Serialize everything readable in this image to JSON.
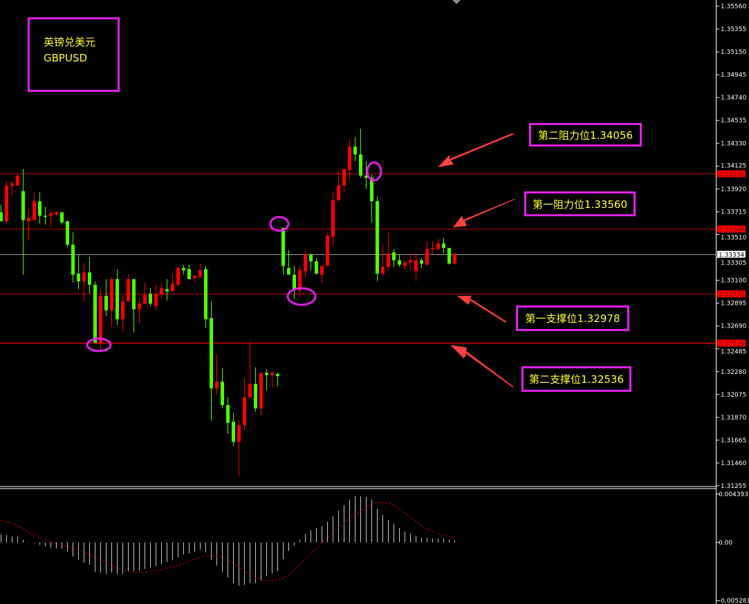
{
  "title_box": {
    "name_cn": "英镑兑美元",
    "symbol": "GBPUSD"
  },
  "annotations": [
    {
      "label": "第二阻力位1.34056",
      "price": 1.34056
    },
    {
      "label": "第一阻力位1.33560",
      "price": 1.3356
    },
    {
      "label": "第一支撑位1.32978",
      "price": 1.32978
    },
    {
      "label": "第二支撑位1.32536",
      "price": 1.32536
    }
  ],
  "colors": {
    "background": "#000000",
    "bull": "#ff0000",
    "bear": "#4cff00",
    "level_line": "#ff0000",
    "label_text": "#ffff33",
    "label_border": "#e020e8",
    "macd_hist": "#c8c8c8",
    "macd_signal": "#ff0000",
    "current_price_line": "#9a9a9a"
  },
  "chart_data": [
    {
      "type": "candlestick",
      "symbol": "GBPUSD",
      "ylim": [
        1.31255,
        1.3556
      ],
      "y_ticks": [
        "1.35560",
        "1.35355",
        "1.35150",
        "1.34945",
        "1.34740",
        "1.34535",
        "1.34330",
        "1.34125",
        "1.33920",
        "1.33715",
        "1.33510",
        "1.33305",
        "1.33100",
        "1.32895",
        "1.32690",
        "1.32485",
        "1.32280",
        "1.32075",
        "1.31870",
        "1.31665",
        "1.31460",
        "1.31255"
      ],
      "price_tags": [
        {
          "value": "1.34056",
          "style": "level"
        },
        {
          "value": "1.33560",
          "style": "level"
        },
        {
          "value": "1.33334",
          "style": "current"
        },
        {
          "value": "1.32978",
          "style": "level"
        },
        {
          "value": "1.32536",
          "style": "level"
        }
      ],
      "horizontal_levels": [
        1.34056,
        1.3356,
        1.32978,
        1.32536
      ],
      "current_price": 1.33334,
      "ohlc": [
        [
          1.3371,
          1.3378,
          1.3363,
          1.3363
        ],
        [
          1.3363,
          1.3399,
          1.3361,
          1.3395
        ],
        [
          1.3395,
          1.3399,
          1.3386,
          1.3397
        ],
        [
          1.3395,
          1.3405,
          1.3395,
          1.3404
        ],
        [
          1.339,
          1.341,
          1.3315,
          1.3364
        ],
        [
          1.3363,
          1.3374,
          1.3346,
          1.3366
        ],
        [
          1.3364,
          1.3389,
          1.3364,
          1.3381
        ],
        [
          1.3381,
          1.3389,
          1.3361,
          1.3368
        ],
        [
          1.3368,
          1.3376,
          1.336,
          1.3367
        ],
        [
          1.3368,
          1.3372,
          1.3358,
          1.337
        ],
        [
          1.3369,
          1.3372,
          1.3368,
          1.3371
        ],
        [
          1.3371,
          1.3371,
          1.336,
          1.3362
        ],
        [
          1.3363,
          1.3364,
          1.334,
          1.3342
        ],
        [
          1.3342,
          1.3353,
          1.3308,
          1.3315
        ],
        [
          1.3316,
          1.3333,
          1.3302,
          1.3309
        ],
        [
          1.3309,
          1.3326,
          1.3291,
          1.3317
        ],
        [
          1.3317,
          1.3331,
          1.3298,
          1.3306
        ],
        [
          1.3306,
          1.3309,
          1.3254,
          1.3254
        ],
        [
          1.3254,
          1.3302,
          1.3247,
          1.3296
        ],
        [
          1.3296,
          1.3311,
          1.3278,
          1.3283
        ],
        [
          1.3283,
          1.3313,
          1.3268,
          1.3311
        ],
        [
          1.3311,
          1.332,
          1.327,
          1.3275
        ],
        [
          1.3275,
          1.3297,
          1.3264,
          1.3291
        ],
        [
          1.3291,
          1.3315,
          1.3291,
          1.3311
        ],
        [
          1.3311,
          1.3311,
          1.3263,
          1.3284
        ],
        [
          1.3284,
          1.3294,
          1.3271,
          1.3289
        ],
        [
          1.3289,
          1.3308,
          1.3289,
          1.3297
        ],
        [
          1.3298,
          1.3303,
          1.3287,
          1.3289
        ],
        [
          1.3287,
          1.3307,
          1.3283,
          1.3298
        ],
        [
          1.3297,
          1.3307,
          1.3294,
          1.3303
        ],
        [
          1.3302,
          1.3311,
          1.3292,
          1.33
        ],
        [
          1.33,
          1.3316,
          1.33,
          1.3307
        ],
        [
          1.3306,
          1.3322,
          1.3304,
          1.3321
        ],
        [
          1.3321,
          1.3324,
          1.3315,
          1.3319
        ],
        [
          1.332,
          1.3324,
          1.3311,
          1.3311
        ],
        [
          1.3312,
          1.3315,
          1.3308,
          1.3314
        ],
        [
          1.3313,
          1.3325,
          1.3312,
          1.3319
        ],
        [
          1.332,
          1.3323,
          1.3267,
          1.3275
        ],
        [
          1.3276,
          1.3291,
          1.3184,
          1.3213
        ],
        [
          1.3213,
          1.3243,
          1.3208,
          1.3219
        ],
        [
          1.3219,
          1.3231,
          1.3195,
          1.3198
        ],
        [
          1.3198,
          1.3205,
          1.3172,
          1.3182
        ],
        [
          1.3183,
          1.3191,
          1.3161,
          1.3165
        ],
        [
          1.3165,
          1.3184,
          1.3134,
          1.318
        ],
        [
          1.318,
          1.3222,
          1.3175,
          1.3205
        ],
        [
          1.3205,
          1.3255,
          1.3204,
          1.3217
        ],
        [
          1.3217,
          1.3232,
          1.3192,
          1.3195
        ],
        [
          1.3195,
          1.3227,
          1.3189,
          1.3227
        ],
        [
          1.3227,
          1.323,
          1.3211,
          1.3225
        ],
        [
          1.3225,
          1.3228,
          1.3214,
          1.3227
        ],
        [
          1.3226,
          1.3227,
          1.3215,
          1.3224
        ],
        [
          1.3357,
          1.3357,
          1.3315,
          1.3323
        ],
        [
          1.3321,
          1.3337,
          1.3315,
          1.3315
        ],
        [
          1.3315,
          1.3323,
          1.3293,
          1.3301
        ],
        [
          1.3301,
          1.3323,
          1.3295,
          1.3319
        ],
        [
          1.3318,
          1.3338,
          1.3313,
          1.3333
        ],
        [
          1.3333,
          1.3334,
          1.3319,
          1.3327
        ],
        [
          1.3327,
          1.333,
          1.3315,
          1.3316
        ],
        [
          1.3315,
          1.3323,
          1.3308,
          1.3323
        ],
        [
          1.3323,
          1.3353,
          1.3323,
          1.335
        ],
        [
          1.3349,
          1.339,
          1.3341,
          1.3382
        ],
        [
          1.3382,
          1.3408,
          1.3381,
          1.3395
        ],
        [
          1.3395,
          1.341,
          1.3389,
          1.341
        ],
        [
          1.3409,
          1.3437,
          1.3401,
          1.343
        ],
        [
          1.343,
          1.3438,
          1.3417,
          1.3423
        ],
        [
          1.3423,
          1.3446,
          1.3402,
          1.3404
        ],
        [
          1.3404,
          1.3417,
          1.3392,
          1.3402
        ],
        [
          1.3402,
          1.3405,
          1.3362,
          1.3381
        ],
        [
          1.3381,
          1.3385,
          1.3309,
          1.3316
        ],
        [
          1.3316,
          1.3342,
          1.3314,
          1.3322
        ],
        [
          1.3322,
          1.3353,
          1.3319,
          1.3334
        ],
        [
          1.3335,
          1.3338,
          1.3322,
          1.3328
        ],
        [
          1.3328,
          1.3333,
          1.3322,
          1.3324
        ],
        [
          1.3323,
          1.3328,
          1.332,
          1.3326
        ],
        [
          1.3326,
          1.3332,
          1.3319,
          1.3328
        ],
        [
          1.3318,
          1.3335,
          1.3309,
          1.3328
        ],
        [
          1.3328,
          1.333,
          1.3321,
          1.3325
        ],
        [
          1.3324,
          1.3345,
          1.3324,
          1.3338
        ],
        [
          1.3338,
          1.3345,
          1.3333,
          1.3339
        ],
        [
          1.3338,
          1.3347,
          1.3337,
          1.3343
        ],
        [
          1.3343,
          1.3348,
          1.3334,
          1.3339
        ],
        [
          1.3339,
          1.3339,
          1.3324,
          1.3325
        ],
        [
          1.3325,
          1.3334,
          1.3324,
          1.3334
        ]
      ]
    },
    {
      "type": "bar+line",
      "indicator": "MACD",
      "ylim": [
        -0.005281,
        0.004393
      ],
      "y_ticks": [
        "0.004393",
        "0.00",
        "-0.005281"
      ],
      "histogram": [
        0.00071,
        0.00067,
        0.00055,
        0.00055,
        0.00023,
        4e-05,
        -6e-05,
        -0.00021,
        -0.00034,
        -0.00046,
        -0.00053,
        -0.00059,
        -0.00084,
        -0.00128,
        -0.0016,
        -0.00185,
        -0.00204,
        -0.00267,
        -0.00273,
        -0.00286,
        -0.00273,
        -0.00286,
        -0.00286,
        -0.0026,
        -0.0026,
        -0.00254,
        -0.00241,
        -0.00229,
        -0.00216,
        -0.00197,
        -0.00179,
        -0.0016,
        -0.00134,
        -0.00109,
        -0.00097,
        -0.00084,
        -0.00065,
        -0.0009,
        -0.0016,
        -0.0021,
        -0.00267,
        -0.00317,
        -0.00367,
        -0.00393,
        -0.00386,
        -0.00368,
        -0.00368,
        -0.00342,
        -0.00305,
        -0.00279,
        -0.0026,
        -0.00153,
        -0.00078,
        -0.00027,
        0.00025,
        0.00076,
        0.00111,
        0.0013,
        0.00149,
        0.00187,
        0.00237,
        0.00288,
        0.00338,
        0.00389,
        0.0042,
        0.0042,
        0.00414,
        0.00389,
        0.00307,
        0.0025,
        0.00206,
        0.00168,
        0.0013,
        0.00099,
        0.0008,
        0.00061,
        0.00042,
        0.00042,
        0.00036,
        0.00036,
        0.00036,
        0.00023,
        0.00017
      ],
      "signal": [
        0.00202,
        0.00189,
        0.00174,
        0.00153,
        0.00124,
        0.00092,
        0.00067,
        0.00046,
        0.00025,
        8e-05,
        -4e-05,
        -0.00019,
        -0.00036,
        -0.00055,
        -0.00071,
        -0.00088,
        -0.00107,
        -0.00134,
        -0.00162,
        -0.00187,
        -0.00212,
        -0.00235,
        -0.0025,
        -0.0026,
        -0.00269,
        -0.00275,
        -0.00271,
        -0.00265,
        -0.00256,
        -0.00248,
        -0.00235,
        -0.00223,
        -0.0021,
        -0.00193,
        -0.00172,
        -0.00151,
        -0.00134,
        -0.00126,
        -0.00124,
        -0.00124,
        -0.00134,
        -0.00155,
        -0.00187,
        -0.00218,
        -0.00252,
        -0.00288,
        -0.00319,
        -0.0034,
        -0.00349,
        -0.00349,
        -0.00344,
        -0.00323,
        -0.00292,
        -0.0025,
        -0.00208,
        -0.00155,
        -0.00103,
        -0.00055,
        -4e-05,
        0.00044,
        0.00086,
        0.00134,
        0.0017,
        0.00223,
        0.00254,
        0.00279,
        0.00311,
        0.00349,
        0.00361,
        0.00361,
        0.00357,
        0.00338,
        0.00311,
        0.00269,
        0.00233,
        0.00195,
        0.00155,
        0.00126,
        0.00105,
        0.00084,
        0.00067,
        0.00057,
        0.00053
      ]
    }
  ]
}
